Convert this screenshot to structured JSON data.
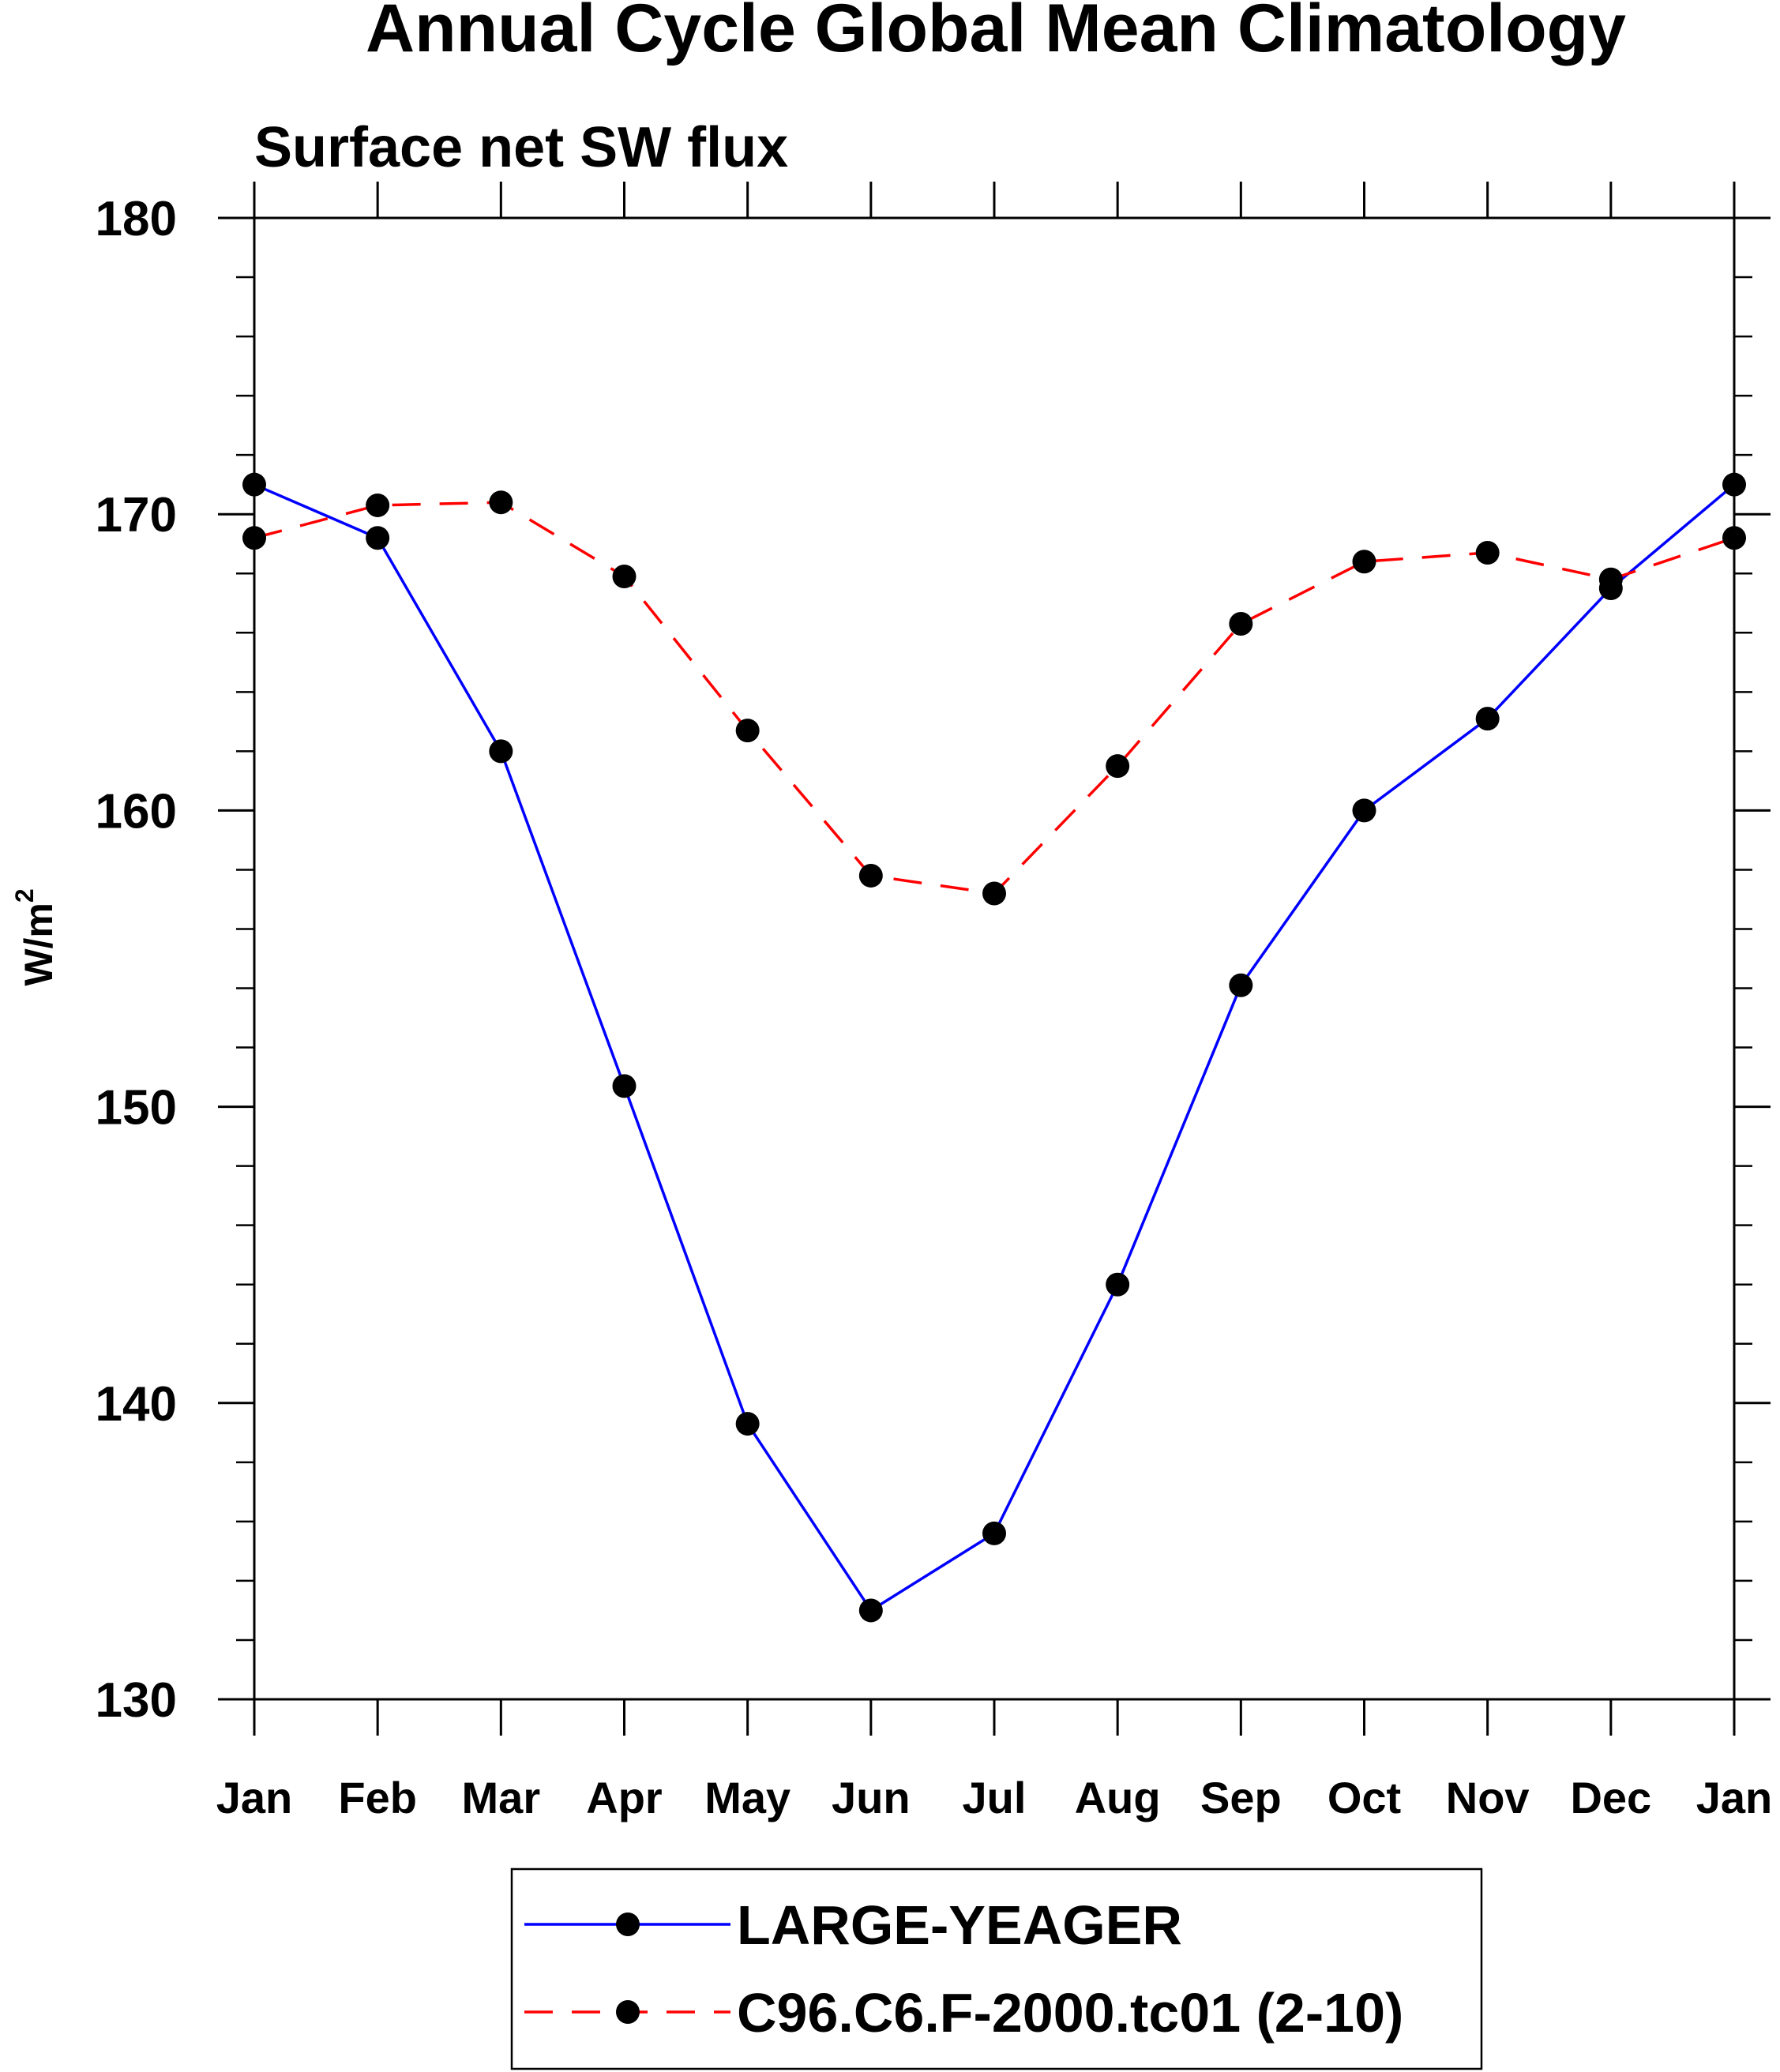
{
  "chart_data": {
    "type": "line",
    "title": "Annual Cycle Global Mean Climatology",
    "subtitle": "Surface net SW flux",
    "ylabel": "W/m",
    "ylabel_superscript": "2",
    "xlabel": "",
    "categories": [
      "Jan",
      "Feb",
      "Mar",
      "Apr",
      "May",
      "Jun",
      "Jul",
      "Aug",
      "Sep",
      "Oct",
      "Nov",
      "Dec",
      "Jan"
    ],
    "ylim": [
      130,
      180
    ],
    "yticks": [
      130,
      140,
      150,
      160,
      170,
      180
    ],
    "y_minor_step": 2,
    "grid": false,
    "legend_position": "bottom",
    "series": [
      {
        "name": "LARGE-YEAGER",
        "color": "#0000ff",
        "dash": "solid",
        "marker": "filled-circle",
        "values": [
          171.0,
          169.2,
          162.0,
          150.7,
          139.3,
          133.0,
          135.6,
          144.0,
          154.1,
          160.0,
          163.1,
          167.5,
          171.0
        ]
      },
      {
        "name": "C96.C6.F-2000.tc01 (2-10)",
        "color": "#ff0000",
        "dash": "dashed",
        "marker": "filled-circle",
        "values": [
          169.2,
          170.3,
          170.4,
          167.9,
          162.7,
          157.8,
          157.2,
          161.5,
          166.3,
          168.4,
          168.7,
          167.8,
          169.2
        ]
      }
    ]
  }
}
